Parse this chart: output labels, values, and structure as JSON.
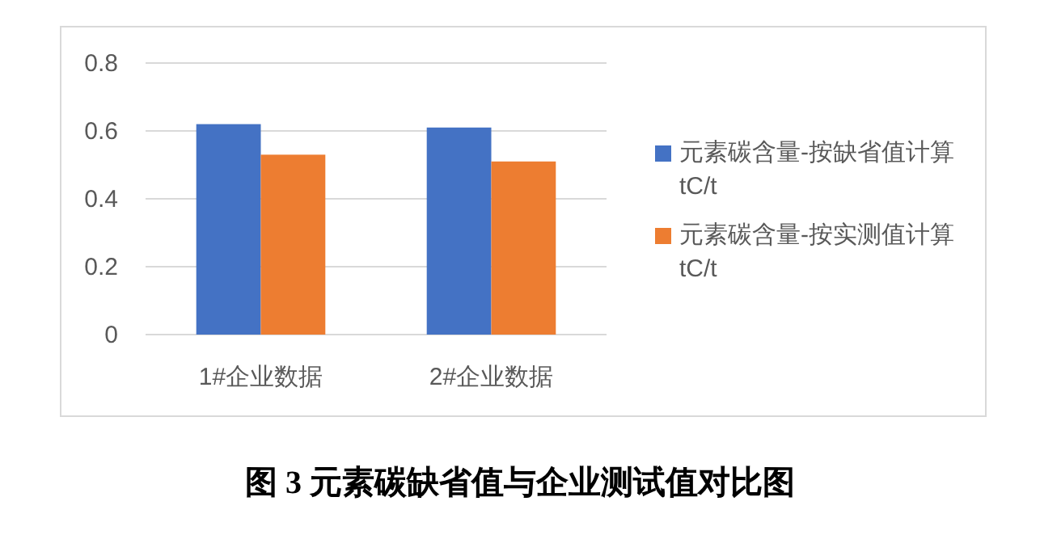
{
  "chart_data": {
    "type": "bar",
    "title": "图 3  元素碳缺省值与企业测试值对比图",
    "categories": [
      "1#企业数据",
      "2#企业数据"
    ],
    "series": [
      {
        "name": "元素碳含量-按缺省值计算 tC/t",
        "color": "#4472c4",
        "values": [
          0.62,
          0.61
        ]
      },
      {
        "name": "元素碳含量-按实测值计算 tC/t",
        "color": "#ed7d31",
        "values": [
          0.53,
          0.51
        ]
      }
    ],
    "ylim": [
      0,
      0.8
    ],
    "yticks": [
      0,
      0.2,
      0.4,
      0.6,
      0.8
    ],
    "grid": "y",
    "legend": "right"
  }
}
